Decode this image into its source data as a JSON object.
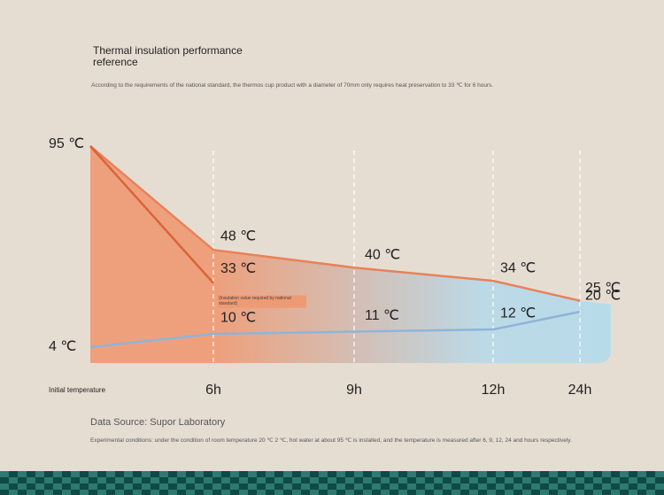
{
  "chart_data": {
    "type": "line",
    "title": "Thermal insulation performance reference",
    "subtitle": "According to the requirements of the national standard, the thermos cup product with a diameter of 70mm only requires heat preservation to 33 ℃ for 6 hours.",
    "categories": [
      "Initial temperature",
      "6h",
      "9h",
      "12h",
      "24h"
    ],
    "series": [
      {
        "color": "#e8825a",
        "values": [
          95,
          48,
          40,
          34,
          25
        ],
        "value_labels": [
          "95 ℃",
          "48 ℃",
          "40 ℃",
          "34 ℃",
          "25 ℃"
        ]
      },
      {
        "color": "#8fb4d8",
        "values": [
          4,
          10,
          11,
          12,
          20
        ],
        "value_labels": [
          "4 ℃",
          "10 ℃",
          "11 ℃",
          "12 ℃",
          "20 ℃"
        ]
      },
      {
        "color": "#d9643a",
        "values": [
          95,
          33,
          null,
          null,
          null
        ],
        "value_labels": [
          null,
          "33 ℃",
          null,
          null,
          null
        ]
      }
    ],
    "ylim": [
      4,
      95
    ],
    "annotation": "(Insulation value required by national standard)",
    "source": "Data Source: Supor Laboratory",
    "note": "Experimental conditions: under the condition of room temperature 20 ℃ 2 ℃, hot water at about 95 ℃ is installed, and the temperature is measured after 6, 9, 12, 24 and hours respectively."
  }
}
